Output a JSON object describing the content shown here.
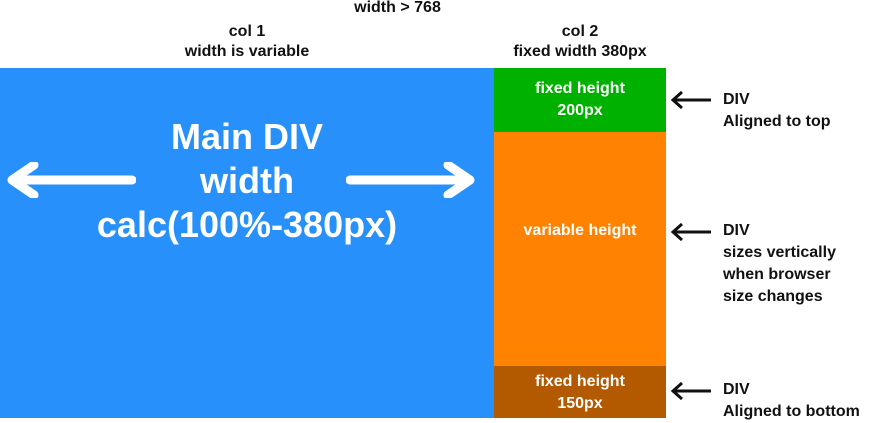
{
  "header": {
    "top_label": "width > 768",
    "col1": {
      "line1": "col 1",
      "line2": "width is variable"
    },
    "col2": {
      "line1": "col 2",
      "line2": "fixed width 380px"
    }
  },
  "main_div": {
    "color": "#2890fa",
    "line1": "Main DIV",
    "line2": "width",
    "line3": "calc(100%-380px)"
  },
  "right_column": {
    "top_box": {
      "color": "#00b100",
      "line1": "fixed height",
      "line2": "200px"
    },
    "middle_box": {
      "color": "#ff8200",
      "line1": "variable height"
    },
    "bottom_box": {
      "color": "#b35900",
      "line1": "fixed height",
      "line2": "150px"
    }
  },
  "annotations": {
    "top": {
      "line1": "DIV",
      "line2": "Aligned to top"
    },
    "middle": {
      "line1": "DIV",
      "line2": "sizes vertically",
      "line3": "when browser",
      "line4": "size changes"
    },
    "bottom": {
      "line1": "DIV",
      "line2": "Aligned to bottom"
    }
  }
}
